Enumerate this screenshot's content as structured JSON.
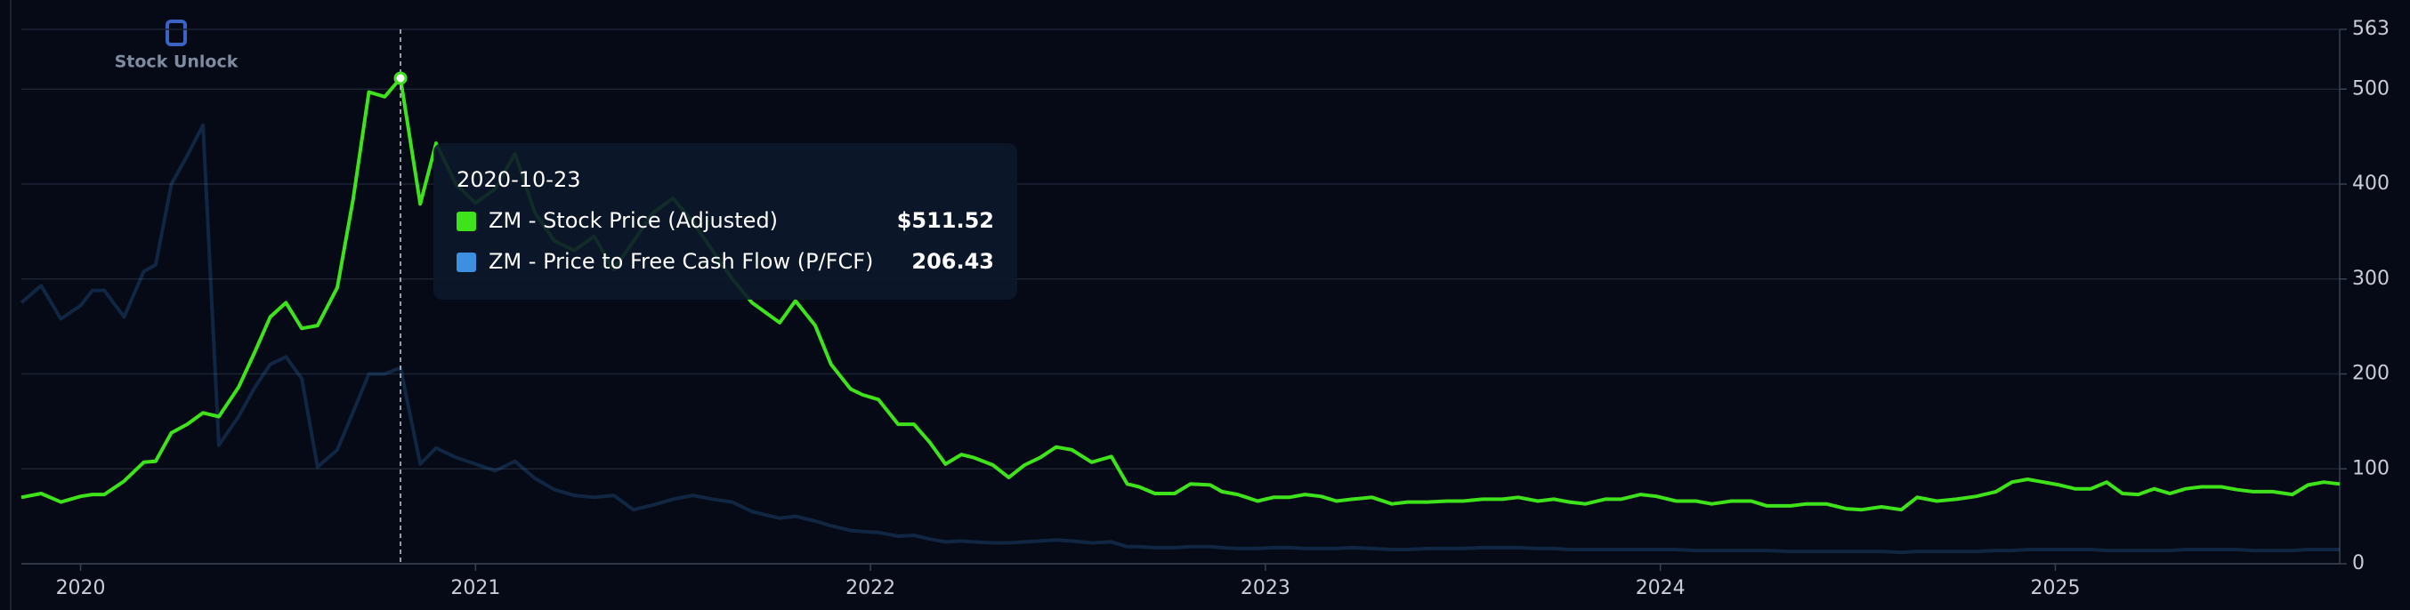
{
  "chart_data": {
    "type": "line",
    "brand": "Stock Unlock",
    "tooltip": {
      "title": "2020-10-23"
    },
    "x": [
      2019.85,
      2019.9,
      2019.95,
      2020.0,
      2020.03,
      2020.06,
      2020.11,
      2020.16,
      2020.19,
      2020.23,
      2020.27,
      2020.31,
      2020.35,
      2020.4,
      2020.44,
      2020.48,
      2020.52,
      2020.56,
      2020.6,
      2020.65,
      2020.69,
      2020.73,
      2020.77,
      2020.81,
      2020.86,
      2020.9,
      2020.95,
      2021.0,
      2021.05,
      2021.1,
      2021.15,
      2021.2,
      2021.25,
      2021.3,
      2021.35,
      2021.4,
      2021.45,
      2021.5,
      2021.55,
      2021.6,
      2021.65,
      2021.7,
      2021.77,
      2021.81,
      2021.86,
      2021.9,
      2021.95,
      2021.98,
      2022.02,
      2022.07,
      2022.11,
      2022.15,
      2022.19,
      2022.23,
      2022.26,
      2022.31,
      2022.35,
      2022.39,
      2022.43,
      2022.47,
      2022.51,
      2022.56,
      2022.61,
      2022.65,
      2022.68,
      2022.72,
      2022.77,
      2022.81,
      2022.86,
      2022.89,
      2022.93,
      2022.98,
      2023.02,
      2023.06,
      2023.1,
      2023.14,
      2023.18,
      2023.22,
      2023.27,
      2023.32,
      2023.36,
      2023.41,
      2023.46,
      2023.5,
      2023.55,
      2023.6,
      2023.64,
      2023.69,
      2023.73,
      2023.77,
      2023.81,
      2023.86,
      2023.9,
      2023.95,
      2023.99,
      2024.04,
      2024.09,
      2024.13,
      2024.18,
      2024.23,
      2024.27,
      2024.33,
      2024.37,
      2024.42,
      2024.47,
      2024.51,
      2024.56,
      2024.61,
      2024.65,
      2024.7,
      2024.75,
      2024.8,
      2024.85,
      2024.89,
      2024.93,
      2024.97,
      2025.01,
      2025.05,
      2025.09,
      2025.13,
      2025.17,
      2025.21,
      2025.25,
      2025.29,
      2025.33,
      2025.37,
      2025.42,
      2025.46,
      2025.5,
      2025.55,
      2025.6,
      2025.64,
      2025.68,
      2025.72
    ],
    "series": [
      {
        "name": "ZM - Stock Price (Adjusted)",
        "color": "#3ee31b",
        "values": [
          70,
          74,
          65,
          71,
          73,
          73,
          87,
          107,
          108,
          138,
          147,
          159,
          155,
          186,
          222,
          260,
          275,
          248,
          251,
          291,
          384,
          497,
          492,
          511.52,
          379,
          443,
          400,
          380,
          395,
          432,
          370,
          340,
          330,
          345,
          310,
          340,
          370,
          385,
          360,
          330,
          300,
          275,
          254,
          277,
          251,
          210,
          184,
          178,
          173,
          147,
          147,
          128,
          105,
          115,
          112,
          104,
          91,
          104,
          112,
          123,
          120,
          107,
          113,
          84,
          81,
          74,
          74,
          84,
          83,
          76,
          73,
          66,
          70,
          70,
          73,
          71,
          66,
          68,
          70,
          63,
          65,
          65,
          66,
          66,
          68,
          68,
          70,
          66,
          68,
          65,
          63,
          68,
          68,
          73,
          71,
          66,
          66,
          63,
          66,
          66,
          61,
          61,
          63,
          63,
          58,
          57,
          60,
          57,
          70,
          66,
          68,
          71,
          76,
          86,
          89,
          86,
          83,
          79,
          79,
          86,
          74,
          73,
          79,
          74,
          79,
          81,
          81,
          78,
          76,
          76,
          73,
          83,
          86,
          84
        ],
        "value_labels": [
          null,
          null,
          null,
          null,
          null,
          null,
          null,
          null,
          null,
          null,
          null,
          null,
          null,
          null,
          null,
          null,
          null,
          null,
          null,
          null,
          null,
          null,
          null,
          "$511.52",
          null,
          null,
          null,
          null,
          null,
          null,
          null,
          null,
          null,
          null,
          null,
          null,
          null,
          null,
          null,
          null,
          null,
          null,
          null,
          null,
          null,
          null,
          null,
          null,
          null,
          null,
          null,
          null,
          null,
          null,
          null,
          null,
          null,
          null,
          null,
          null,
          null,
          null,
          null,
          null,
          null,
          null,
          null,
          null,
          null,
          null,
          null,
          null,
          null,
          null,
          null,
          null,
          null,
          null,
          null,
          null,
          null,
          null,
          null,
          null,
          null,
          null,
          null,
          null,
          null,
          null,
          null,
          null,
          null,
          null,
          null,
          null,
          null,
          null,
          null,
          null,
          null,
          null,
          null,
          null,
          null,
          null,
          null,
          null,
          null,
          null,
          null,
          null,
          null,
          null,
          null,
          null,
          null,
          null,
          null,
          null,
          null,
          null,
          null,
          null,
          null,
          null,
          null,
          null,
          null,
          null,
          null,
          null,
          null,
          null
        ]
      },
      {
        "name": "ZM - Price to Free Cash Flow (P/FCF)",
        "color": "#3d8fe0",
        "values": [
          275,
          293,
          258,
          272,
          288,
          288,
          260,
          308,
          315,
          400,
          430,
          462,
          125,
          155,
          185,
          210,
          218,
          195,
          102,
          120,
          160,
          200,
          200,
          206.43,
          105,
          122,
          112,
          105,
          98,
          108,
          90,
          78,
          72,
          70,
          72,
          57,
          62,
          68,
          72,
          68,
          65,
          55,
          48,
          50,
          45,
          40,
          35,
          34,
          33,
          29,
          30,
          26,
          23,
          24,
          23,
          22,
          22,
          23,
          24,
          25,
          24,
          22,
          23,
          18,
          18,
          17,
          17,
          18,
          18,
          17,
          16,
          16,
          17,
          17,
          16,
          16,
          16,
          17,
          16,
          15,
          15,
          16,
          16,
          16,
          17,
          17,
          17,
          16,
          16,
          15,
          15,
          15,
          15,
          15,
          15,
          15,
          14,
          14,
          14,
          14,
          14,
          13,
          13,
          13,
          13,
          13,
          13,
          12,
          13,
          13,
          13,
          13,
          14,
          14,
          15,
          15,
          15,
          15,
          15,
          14,
          14,
          14,
          14,
          14,
          15,
          15,
          15,
          15,
          14,
          14,
          14,
          15,
          15,
          15
        ],
        "value_labels": [
          null,
          null,
          null,
          null,
          null,
          null,
          null,
          null,
          null,
          null,
          null,
          null,
          null,
          null,
          null,
          null,
          null,
          null,
          null,
          null,
          null,
          null,
          null,
          "206.43",
          null,
          null,
          null,
          null,
          null,
          null,
          null,
          null,
          null,
          null,
          null,
          null,
          null,
          null,
          null,
          null,
          null,
          null,
          null,
          null,
          null,
          null,
          null,
          null,
          null,
          null,
          null,
          null,
          null,
          null,
          null,
          null,
          null,
          null,
          null,
          null,
          null,
          null,
          null,
          null,
          null,
          null,
          null,
          null,
          null,
          null,
          null,
          null,
          null,
          null,
          null,
          null,
          null,
          null,
          null,
          null,
          null,
          null,
          null,
          null,
          null,
          null,
          null,
          null,
          null,
          null,
          null,
          null,
          null,
          null,
          null,
          null,
          null,
          null,
          null,
          null,
          null,
          null,
          null,
          null,
          null,
          null,
          null,
          null,
          null,
          null,
          null,
          null,
          null,
          null,
          null,
          null,
          null,
          null,
          null,
          null,
          null,
          null,
          null,
          null,
          null,
          null,
          null,
          null,
          null,
          null,
          null,
          null,
          null,
          null
        ]
      }
    ],
    "xlim": [
      2019.85,
      2025.72
    ],
    "xticks": [
      2020,
      2021,
      2022,
      2023,
      2024,
      2025
    ],
    "ylim": [
      0,
      563
    ],
    "yticks": [
      0,
      100,
      200,
      300,
      400,
      500,
      563
    ],
    "grid": true
  }
}
